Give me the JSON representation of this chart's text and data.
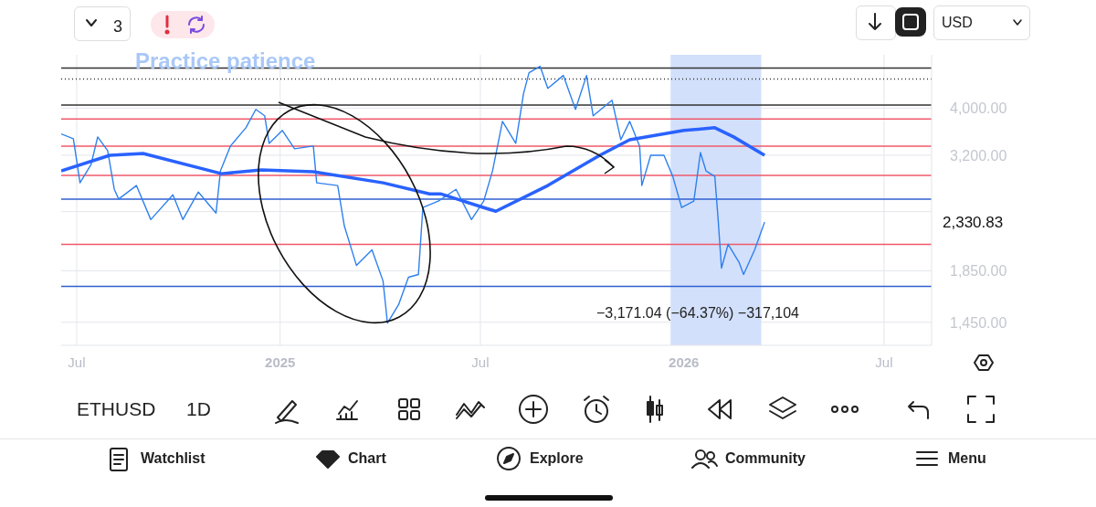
{
  "chart_data": {
    "type": "line",
    "xlim": [
      "2024-06-17",
      "2026-08-13"
    ],
    "xticks": [
      {
        "value": "2024-07-01",
        "label": "Jul"
      },
      {
        "value": "2025-01-01",
        "label": "2025"
      },
      {
        "value": "2025-07-01",
        "label": "Jul"
      },
      {
        "value": "2026-01-01",
        "label": "2026"
      },
      {
        "value": "2026-07-01",
        "label": "Jul"
      }
    ],
    "ylim": [
      1300,
      5150
    ],
    "yticks": [
      {
        "value": 1450,
        "label": "1,450.00"
      },
      {
        "value": 1850,
        "label": "1,850.00"
      },
      {
        "value": 2450,
        "label": null
      },
      {
        "value": 3200,
        "label": "3,200.00"
      },
      {
        "value": 4000,
        "label": "4,000.00"
      }
    ],
    "log": true,
    "grid": true,
    "series": [
      {
        "color": "#2f80ed",
        "x": [
          "2024-06-17",
          "2024-06-28",
          "2024-07-04",
          "2024-07-14",
          "2024-07-20",
          "2024-07-29",
          "2024-08-04",
          "2024-08-08",
          "2024-08-24",
          "2024-09-06",
          "2024-09-26",
          "2024-10-05",
          "2024-10-19",
          "2024-11-04",
          "2024-11-08",
          "2024-11-17",
          "2024-12-01",
          "2024-12-10",
          "2024-12-18",
          "2024-12-22",
          "2025-01-03",
          "2025-01-14",
          "2025-01-31",
          "2025-02-03",
          "2025-02-22",
          "2025-02-28",
          "2025-03-11",
          "2025-03-25",
          "2025-04-04",
          "2025-04-08",
          "2025-04-18",
          "2025-04-27",
          "2025-05-06",
          "2025-05-10",
          "2025-05-24",
          "2025-06-09",
          "2025-06-23",
          "2025-07-04",
          "2025-07-12",
          "2025-07-21",
          "2025-08-02",
          "2025-08-09",
          "2025-08-14",
          "2025-08-24",
          "2025-08-31",
          "2025-09-14",
          "2025-09-25",
          "2025-10-05",
          "2025-10-11",
          "2025-10-28",
          "2025-11-05",
          "2025-11-13",
          "2025-11-22",
          "2025-11-24",
          "2025-12-02",
          "2025-12-14",
          "2025-12-22",
          "2025-12-30",
          "2026-01-10",
          "2026-01-16",
          "2026-01-21",
          "2026-01-29",
          "2026-02-01",
          "2026-02-04",
          "2026-02-10",
          "2026-02-20",
          "2026-02-24",
          "2026-03-06",
          "2026-03-15"
        ],
        "values": [
          3540,
          3461,
          2808,
          3063,
          3490,
          3270,
          2723,
          2600,
          2772,
          2359,
          2653,
          2359,
          2688,
          2433,
          2971,
          3342,
          3645,
          3976,
          3857,
          3385,
          3598,
          3299,
          3342,
          2808,
          2772,
          2289,
          1898,
          2044,
          1763,
          1444,
          1575,
          1795,
          1818,
          2497,
          2574,
          2723,
          2359,
          2574,
          2971,
          3757,
          3385,
          4282,
          4731,
          4878,
          4393,
          4670,
          3976,
          4670,
          3857,
          4153,
          3444,
          3757,
          3342,
          2772,
          3199,
          3199,
          2894,
          2497,
          2574,
          3241,
          2971,
          2894,
          2359,
          1874,
          2098,
          1924,
          1818,
          2044,
          2330.83
        ]
      },
      {
        "color": "#2962ff",
        "x": [
          "2024-06-17",
          "2024-07-31",
          "2024-08-30",
          "2024-11-09",
          "2024-12-15",
          "2025-01-31",
          "2025-04-04",
          "2025-05-16",
          "2025-05-26",
          "2025-07-04",
          "2025-07-15",
          "2025-08-31",
          "2025-10-17",
          "2025-11-13",
          "2026-01-01",
          "2026-01-29",
          "2026-02-15",
          "2026-03-15"
        ],
        "values": [
          2971,
          3199,
          3227,
          2932,
          2984,
          2958,
          2808,
          2665,
          2665,
          2497,
          2454,
          2772,
          3199,
          3444,
          3598,
          3645,
          3490,
          3199
        ]
      }
    ],
    "ref_lines": [
      {
        "axis": "y",
        "value": 4835,
        "color": "#333333",
        "line_style": "solid"
      },
      {
        "axis": "y",
        "value": 4590,
        "color": "#333333",
        "line_style": "dotted"
      },
      {
        "axis": "y",
        "value": 4060,
        "color": "#333333",
        "line_style": "solid"
      },
      {
        "axis": "y",
        "value": 3800,
        "color": "#f0586a",
        "line_style": "solid"
      },
      {
        "axis": "y",
        "value": 3341,
        "color": "#f0586a",
        "line_style": "solid"
      },
      {
        "axis": "y",
        "value": 2908,
        "color": "#f0586a",
        "line_style": "solid"
      },
      {
        "axis": "y",
        "value": 2600,
        "color": "#2f5fd0",
        "line_style": "solid"
      },
      {
        "axis": "y",
        "value": 2098,
        "color": "#f0586a",
        "line_style": "solid"
      },
      {
        "axis": "y",
        "value": 1718,
        "color": "#2f5fd0",
        "line_style": "solid"
      }
    ],
    "bands": [
      {
        "axis": "x",
        "from": "2025-12-20",
        "to": "2026-03-12",
        "color": "#d3e0fb"
      }
    ],
    "annotations": [
      "Practice patience",
      "−3,171.04 (−64.37%) −317,104",
      "3",
      "USD",
      "ETHUSD",
      "1D",
      "Watchlist",
      "Chart",
      "Explore",
      "Community",
      "Menu",
      "2,330.83"
    ]
  }
}
